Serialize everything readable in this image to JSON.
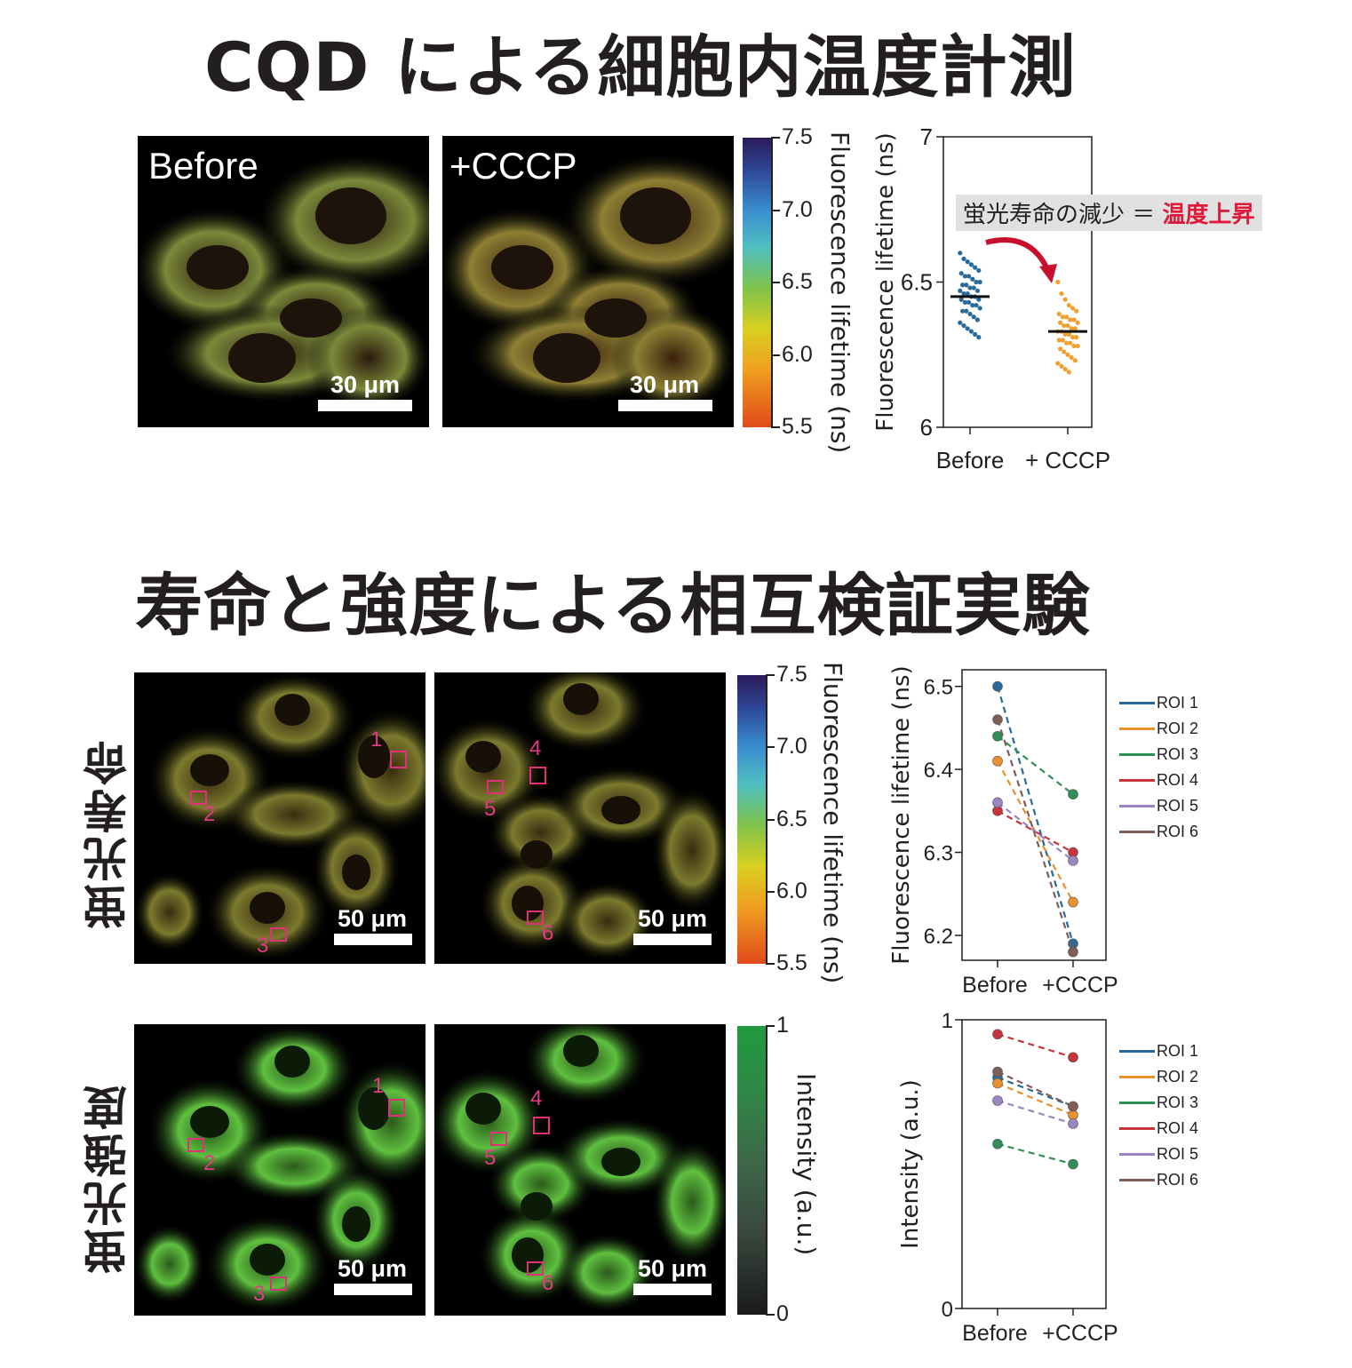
{
  "titles": {
    "top": "CQD による細胞内温度計測",
    "middle": "寿命と強度による相互検証実験"
  },
  "row_labels": {
    "lifetime": "蛍光寿命",
    "intensity": "蛍光強度"
  },
  "top_section": {
    "panel_before": "Before",
    "panel_cccp": "+CCCP",
    "scale_bar": "30 μm",
    "colorbar": {
      "label": "Fluorescence lifetime (ns)",
      "ticks": [
        "7.5",
        "7.0",
        "6.5",
        "6.0",
        "5.5"
      ]
    },
    "annotation": {
      "prefix": "蛍光寿命の減少 ＝ ",
      "highlight": "温度上昇",
      "highlight_color": "#e0193a"
    }
  },
  "bottom_section": {
    "scale_bar": "50 μm",
    "lifetime_colorbar": {
      "label": "Fluorescence lifetime (ns)",
      "ticks": [
        "7.5",
        "7.0",
        "6.5",
        "6.0",
        "5.5"
      ]
    },
    "intensity_colorbar": {
      "label": "Intensity (a.u.)",
      "ticks": [
        "1",
        "0"
      ]
    },
    "roi_numbers": [
      "1",
      "2",
      "3",
      "4",
      "5",
      "6"
    ]
  },
  "chart_data": [
    {
      "type": "scatter",
      "categories": [
        "Before",
        "+ CCCP"
      ],
      "ylabel": "Fluorescence lifetime (ns)",
      "ylim": [
        6,
        7
      ],
      "yticks": [
        "6",
        "6.5",
        "7"
      ],
      "series": [
        {
          "category": "Before",
          "color": "#2a6a9a",
          "mean": 6.45,
          "values": [
            6.6,
            6.58,
            6.57,
            6.56,
            6.55,
            6.54,
            6.53,
            6.52,
            6.52,
            6.51,
            6.5,
            6.5,
            6.49,
            6.49,
            6.48,
            6.48,
            6.47,
            6.47,
            6.46,
            6.46,
            6.45,
            6.45,
            6.44,
            6.44,
            6.43,
            6.43,
            6.42,
            6.42,
            6.41,
            6.4,
            6.4,
            6.39,
            6.38,
            6.37,
            6.36,
            6.35,
            6.34,
            6.33,
            6.32,
            6.31
          ]
        },
        {
          "category": "+ CCCP",
          "color": "#f0a030",
          "mean": 6.33,
          "values": [
            6.5,
            6.46,
            6.44,
            6.42,
            6.41,
            6.4,
            6.39,
            6.38,
            6.38,
            6.37,
            6.37,
            6.36,
            6.36,
            6.35,
            6.35,
            6.34,
            6.34,
            6.33,
            6.33,
            6.32,
            6.32,
            6.31,
            6.31,
            6.3,
            6.3,
            6.29,
            6.29,
            6.28,
            6.28,
            6.27,
            6.26,
            6.25,
            6.24,
            6.23,
            6.22,
            6.21,
            6.2,
            6.19
          ]
        }
      ]
    },
    {
      "type": "line",
      "categories": [
        "Before",
        "+CCCP"
      ],
      "ylabel": "Fluorescence lifetime (ns)",
      "ylim": [
        6.17,
        6.52
      ],
      "yticks": [
        "6.2",
        "6.3",
        "6.4",
        "6.5"
      ],
      "series": [
        {
          "name": "ROI 1",
          "color": "#2a6a9a",
          "values": [
            6.5,
            6.19
          ]
        },
        {
          "name": "ROI 2",
          "color": "#e8912e",
          "values": [
            6.41,
            6.24
          ]
        },
        {
          "name": "ROI 3",
          "color": "#2f8f57",
          "values": [
            6.44,
            6.37
          ]
        },
        {
          "name": "ROI 4",
          "color": "#c9333b",
          "values": [
            6.35,
            6.3
          ]
        },
        {
          "name": "ROI 5",
          "color": "#9a86c2",
          "values": [
            6.36,
            6.29
          ]
        },
        {
          "name": "ROI 6",
          "color": "#7e5e55",
          "values": [
            6.46,
            6.18
          ]
        }
      ]
    },
    {
      "type": "line",
      "categories": [
        "Before",
        "+CCCP"
      ],
      "ylabel": "Intensity (a.u.)",
      "ylim": [
        0,
        1
      ],
      "yticks": [
        "0",
        "1"
      ],
      "series": [
        {
          "name": "ROI 1",
          "color": "#2a6a9a",
          "values": [
            0.8,
            0.7
          ]
        },
        {
          "name": "ROI 2",
          "color": "#e8912e",
          "values": [
            0.78,
            0.67
          ]
        },
        {
          "name": "ROI 3",
          "color": "#2f8f57",
          "values": [
            0.57,
            0.5
          ]
        },
        {
          "name": "ROI 4",
          "color": "#c9333b",
          "values": [
            0.95,
            0.87
          ]
        },
        {
          "name": "ROI 5",
          "color": "#9a86c2",
          "values": [
            0.72,
            0.64
          ]
        },
        {
          "name": "ROI 6",
          "color": "#7e5e55",
          "values": [
            0.82,
            0.7
          ]
        }
      ]
    }
  ]
}
